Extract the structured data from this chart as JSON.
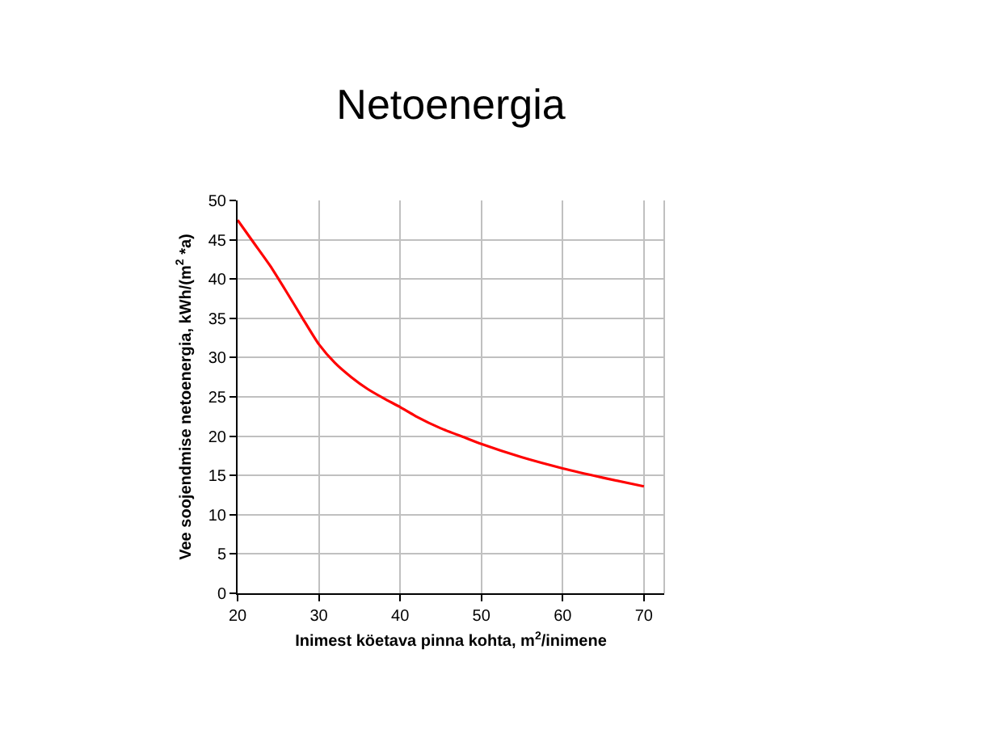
{
  "chart_data": {
    "type": "line",
    "title": "Netoenergia",
    "xlabel": "Inimest köetava pinna kohta, m$^{2}$/inimene",
    "ylabel": "Vee soojendmise netoenergia, kWh/(m$^{2}$ *a)",
    "x": [
      20,
      22,
      24,
      26,
      28,
      30,
      32,
      34,
      36,
      38,
      40,
      42,
      45,
      48,
      50,
      55,
      60,
      65,
      70
    ],
    "series": [
      {
        "color": "#ff0000",
        "values": [
          47.5,
          44.6,
          41.7,
          38.4,
          35,
          31.7,
          29.3,
          27.5,
          26,
          24.8,
          23.7,
          22.5,
          21,
          19.8,
          19,
          17.3,
          15.9,
          14.7,
          13.6
        ]
      }
    ],
    "xlim": [
      20,
      72.5
    ],
    "xticks": [
      20,
      30,
      40,
      50,
      60,
      70
    ],
    "ylim": [
      0,
      50
    ],
    "yticks": [
      0,
      5,
      10,
      15,
      20,
      25,
      30,
      35,
      40,
      45,
      50
    ],
    "grid": true,
    "marker": "none",
    "line_style": "solid"
  }
}
